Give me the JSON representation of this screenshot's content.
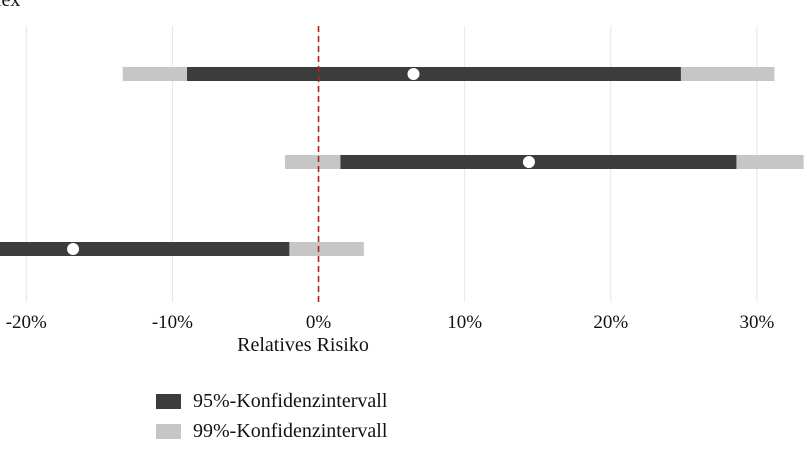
{
  "chart_data": {
    "type": "interval",
    "title_fragment": "lex",
    "xlabel": "Relatives Risiko",
    "xlim": [
      -21.8,
      33.5
    ],
    "x_ticks": [
      -20,
      -10,
      0,
      10,
      20,
      30
    ],
    "x_tick_labels": [
      "-20%",
      "-10%",
      "0%",
      "10%",
      "20%",
      "30%"
    ],
    "reference_line": 0,
    "grid": "vertical",
    "rows": [
      {
        "estimate": 6.5,
        "ci95": [
          -9.0,
          24.8
        ],
        "ci99": [
          -13.4,
          31.2
        ]
      },
      {
        "estimate": 14.4,
        "ci95": [
          1.5,
          28.6
        ],
        "ci99": [
          -2.3,
          33.2
        ]
      },
      {
        "estimate": -16.8,
        "ci95": [
          -22.0,
          -2.0
        ],
        "ci99": [
          -22.0,
          3.1
        ]
      }
    ],
    "legend": [
      {
        "label": "95%-Konfidenzintervall",
        "color": "#3c3c3c"
      },
      {
        "label": "99%-Konfidenzintervall",
        "color": "#c6c6c6"
      }
    ],
    "colors": {
      "ci95": "#3c3c3c",
      "ci99": "#c6c6c6",
      "reference": "#b22222",
      "grid": "#e6e6e6",
      "point": "#ffffff"
    }
  }
}
